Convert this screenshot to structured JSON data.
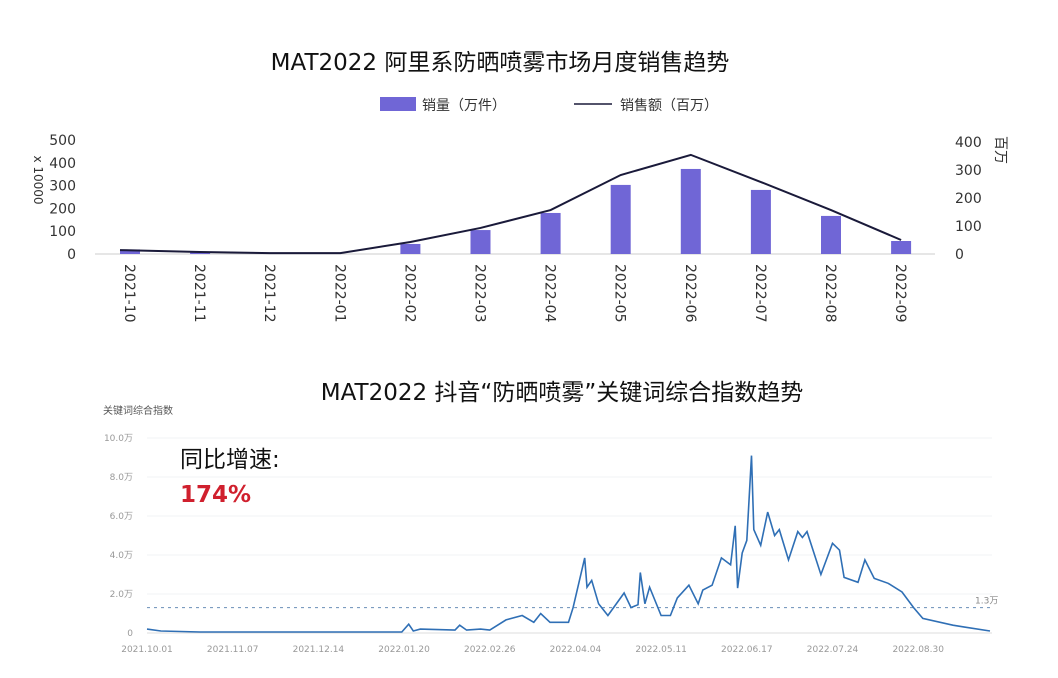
{
  "chart_data": [
    {
      "type": "bar",
      "title": "MAT2022 阿里系防晒喷雾市场月度销售趋势",
      "categories": [
        "2021-10",
        "2021-11",
        "2021-12",
        "2022-01",
        "2022-02",
        "2022-03",
        "2022-04",
        "2022-05",
        "2022-06",
        "2022-07",
        "2022-08",
        "2022-09"
      ],
      "series": [
        {
          "name": "销量（万件）",
          "type": "bar",
          "axis": "left",
          "color": "#7066d6",
          "values": [
            20,
            8,
            0,
            0,
            44,
            105,
            180,
            303,
            373,
            281,
            167,
            57
          ]
        },
        {
          "name": "销售额（百万）",
          "type": "line",
          "axis": "right",
          "color": "#1a1a3a",
          "values": [
            14,
            7,
            3,
            3,
            43,
            93,
            157,
            282,
            354,
            257,
            157,
            50
          ]
        }
      ],
      "ylabel_left": "x 10000",
      "ylabel_right": "百万",
      "ylim_left": [
        0,
        500
      ],
      "ylim_right": [
        0,
        400
      ],
      "yticks_left": [
        "0",
        "100",
        "200",
        "300",
        "400",
        "500"
      ],
      "yticks_right": [
        "0",
        "100",
        "200",
        "300",
        "400"
      ],
      "legend_placement": "top-center",
      "grid": false
    },
    {
      "type": "line",
      "title": "MAT2022 抖音“防晒喷雾”关键词综合指数趋势",
      "ylabel": "关键词综合指数",
      "ylim": [
        0,
        10
      ],
      "yticks": [
        "0",
        "2.0万",
        "4.0万",
        "6.0万",
        "8.0万",
        "10.0万"
      ],
      "xticks": [
        "2021.10.01",
        "2021.11.07",
        "2021.12.14",
        "2022.01.20",
        "2022.02.26",
        "2022.04.04",
        "2022.05.11",
        "2022.06.17",
        "2022.07.24",
        "2022.08.30"
      ],
      "xlim": [
        "2021-10-01",
        "2022-09-30"
      ],
      "reference_line": {
        "value": 1.3,
        "label": "1.3万"
      },
      "color": "#2f6fb5",
      "grid": true,
      "annotation": {
        "label": "同比增速:",
        "value": "174%",
        "value_color": "#d0202e"
      },
      "points": [
        [
          "2021-10-01",
          0.2
        ],
        [
          "2021-10-07",
          0.1
        ],
        [
          "2021-10-24",
          0.05
        ],
        [
          "2021-12-06",
          0.05
        ],
        [
          "2022-01-19",
          0.05
        ],
        [
          "2022-01-22",
          0.45
        ],
        [
          "2022-01-24",
          0.1
        ],
        [
          "2022-01-27",
          0.2
        ],
        [
          "2022-02-11",
          0.15
        ],
        [
          "2022-02-13",
          0.4
        ],
        [
          "2022-02-16",
          0.15
        ],
        [
          "2022-02-22",
          0.2
        ],
        [
          "2022-02-26",
          0.15
        ],
        [
          "2022-03-05",
          0.67
        ],
        [
          "2022-03-12",
          0.9
        ],
        [
          "2022-03-17",
          0.55
        ],
        [
          "2022-03-20",
          1.0
        ],
        [
          "2022-03-24",
          0.55
        ],
        [
          "2022-04-01",
          0.55
        ],
        [
          "2022-04-03",
          1.3
        ],
        [
          "2022-04-08",
          3.85
        ],
        [
          "2022-04-09",
          2.35
        ],
        [
          "2022-04-11",
          2.7
        ],
        [
          "2022-04-14",
          1.5
        ],
        [
          "2022-04-18",
          0.9
        ],
        [
          "2022-04-25",
          2.05
        ],
        [
          "2022-04-28",
          1.3
        ],
        [
          "2022-05-01",
          1.45
        ],
        [
          "2022-05-02",
          3.1
        ],
        [
          "2022-05-04",
          1.5
        ],
        [
          "2022-05-06",
          2.35
        ],
        [
          "2022-05-11",
          0.9
        ],
        [
          "2022-05-15",
          0.9
        ],
        [
          "2022-05-18",
          1.8
        ],
        [
          "2022-05-23",
          2.45
        ],
        [
          "2022-05-27",
          1.5
        ],
        [
          "2022-05-29",
          2.2
        ],
        [
          "2022-06-02",
          2.45
        ],
        [
          "2022-06-06",
          3.85
        ],
        [
          "2022-06-10",
          3.5
        ],
        [
          "2022-06-12",
          5.5
        ],
        [
          "2022-06-13",
          2.3
        ],
        [
          "2022-06-15",
          4.1
        ],
        [
          "2022-06-17",
          4.75
        ],
        [
          "2022-06-19",
          9.1
        ],
        [
          "2022-06-20",
          5.3
        ],
        [
          "2022-06-23",
          4.5
        ],
        [
          "2022-06-26",
          6.2
        ],
        [
          "2022-06-29",
          5.0
        ],
        [
          "2022-07-01",
          5.3
        ],
        [
          "2022-07-05",
          3.75
        ],
        [
          "2022-07-09",
          5.2
        ],
        [
          "2022-07-11",
          4.9
        ],
        [
          "2022-07-13",
          5.2
        ],
        [
          "2022-07-19",
          3.0
        ],
        [
          "2022-07-24",
          4.6
        ],
        [
          "2022-07-27",
          4.25
        ],
        [
          "2022-07-29",
          2.85
        ],
        [
          "2022-08-04",
          2.6
        ],
        [
          "2022-08-07",
          3.75
        ],
        [
          "2022-08-11",
          2.8
        ],
        [
          "2022-08-17",
          2.55
        ],
        [
          "2022-08-23",
          2.1
        ],
        [
          "2022-08-28",
          1.3
        ],
        [
          "2022-09-01",
          0.75
        ],
        [
          "2022-09-14",
          0.4
        ],
        [
          "2022-09-19",
          0.3
        ],
        [
          "2022-09-30",
          0.1
        ]
      ]
    }
  ]
}
